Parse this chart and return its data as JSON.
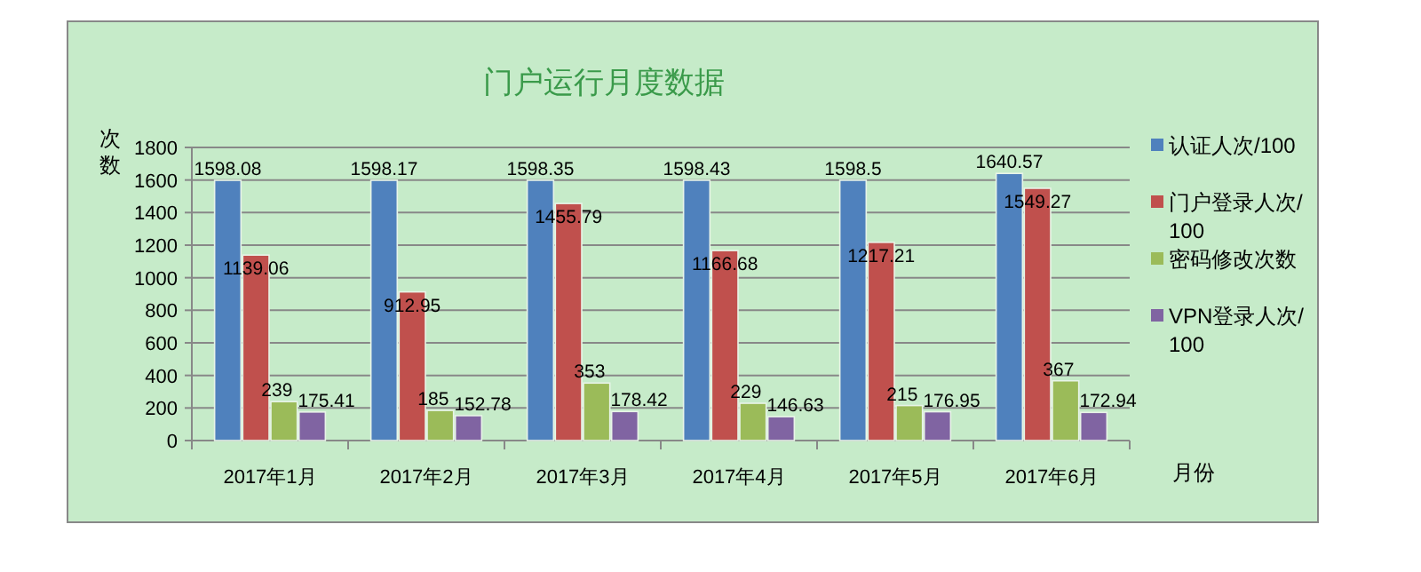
{
  "chart_data": {
    "type": "bar",
    "title": "门户运行月度数据",
    "ylabel": "次数",
    "xlabel": "月份",
    "categories": [
      "2017年1月",
      "2017年2月",
      "2017年3月",
      "2017年4月",
      "2017年5月",
      "2017年6月"
    ],
    "series": [
      {
        "name": "认证人次/100",
        "color": "#4f81bd",
        "values": [
          1598.08,
          1598.17,
          1598.35,
          1598.43,
          1598.5,
          1640.57
        ]
      },
      {
        "name": "门户登录人次/100",
        "color": "#c0504d",
        "values": [
          1139.06,
          912.95,
          1455.79,
          1166.68,
          1217.21,
          1549.27
        ]
      },
      {
        "name": "密码修改次数",
        "color": "#9bbb59",
        "values": [
          239,
          185,
          353,
          229,
          215,
          367
        ]
      },
      {
        "name": "VPN登录人次/100",
        "color": "#8064a2",
        "values": [
          175.41,
          152.78,
          178.42,
          146.63,
          176.95,
          172.94
        ]
      }
    ],
    "ylim": [
      0,
      1800
    ],
    "yticks": [
      0,
      200,
      400,
      600,
      800,
      1000,
      1200,
      1400,
      1600,
      1800
    ],
    "grid": "y",
    "legend": "right",
    "data_labels": true
  }
}
